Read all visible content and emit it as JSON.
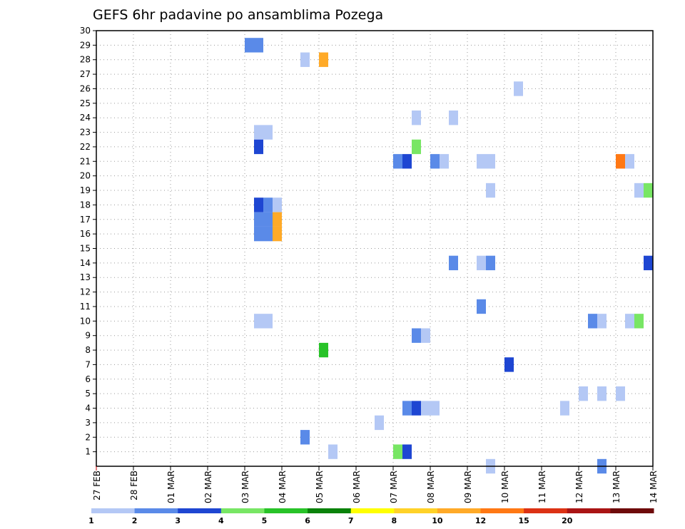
{
  "chart_data": {
    "type": "heatmap",
    "title": "GEFS 6hr padavine po ansamblima Pozega",
    "xlabel": "",
    "ylabel": "",
    "x_tick_labels": [
      "27 FEB",
      "28 FEB",
      "01 MAR",
      "02 MAR",
      "03 MAR",
      "04 MAR",
      "05 MAR",
      "06 MAR",
      "07 MAR",
      "08 MAR",
      "09 MAR",
      "10 MAR",
      "11 MAR",
      "12 MAR",
      "13 MAR",
      "14 MAR"
    ],
    "xlim_days": [
      0,
      15
    ],
    "y_ticks": [
      1,
      2,
      3,
      4,
      5,
      6,
      7,
      8,
      9,
      10,
      11,
      12,
      13,
      14,
      15,
      16,
      17,
      18,
      19,
      20,
      21,
      22,
      23,
      24,
      25,
      26,
      27,
      28,
      29,
      30
    ],
    "ylim": [
      0,
      30
    ],
    "grid": true,
    "legend_position": "bottom",
    "colorbar": {
      "labels": [
        "1",
        "2",
        "3",
        "4",
        "5",
        "6",
        "7",
        "8",
        "10",
        "12",
        "15",
        "20"
      ],
      "colors": [
        "#b4c8f5",
        "#5a8ae8",
        "#1e46d2",
        "#78e664",
        "#28c328",
        "#0a820a",
        "#ffff00",
        "#ffd228",
        "#ffaa28",
        "#ff7814",
        "#dc3214",
        "#aa1414",
        "#6e0a0a"
      ]
    },
    "cells": [
      {
        "day": 4.0,
        "member": 29,
        "color": "#5a8ae8"
      },
      {
        "day": 4.25,
        "member": 29,
        "color": "#5a8ae8"
      },
      {
        "day": 5.5,
        "member": 28,
        "color": "#b4c8f5"
      },
      {
        "day": 6.0,
        "member": 28,
        "color": "#ffaa28"
      },
      {
        "day": 11.25,
        "member": 26,
        "color": "#b4c8f5"
      },
      {
        "day": 8.5,
        "member": 24,
        "color": "#b4c8f5"
      },
      {
        "day": 9.5,
        "member": 24,
        "color": "#b4c8f5"
      },
      {
        "day": 4.25,
        "member": 23,
        "color": "#b4c8f5"
      },
      {
        "day": 4.5,
        "member": 23,
        "color": "#b4c8f5"
      },
      {
        "day": 4.25,
        "member": 22,
        "color": "#1e46d2"
      },
      {
        "day": 8.5,
        "member": 22,
        "color": "#78e664"
      },
      {
        "day": 8.0,
        "member": 21,
        "color": "#5a8ae8"
      },
      {
        "day": 8.25,
        "member": 21,
        "color": "#1e46d2"
      },
      {
        "day": 9.0,
        "member": 21,
        "color": "#5a8ae8"
      },
      {
        "day": 9.25,
        "member": 21,
        "color": "#b4c8f5"
      },
      {
        "day": 10.25,
        "member": 21,
        "color": "#b4c8f5"
      },
      {
        "day": 10.5,
        "member": 21,
        "color": "#b4c8f5"
      },
      {
        "day": 14.0,
        "member": 21,
        "color": "#ff7814"
      },
      {
        "day": 14.25,
        "member": 21,
        "color": "#b4c8f5"
      },
      {
        "day": 10.5,
        "member": 19,
        "color": "#b4c8f5"
      },
      {
        "day": 14.5,
        "member": 19,
        "color": "#b4c8f5"
      },
      {
        "day": 14.75,
        "member": 19,
        "color": "#78e664"
      },
      {
        "day": 4.25,
        "member": 18,
        "color": "#1e46d2"
      },
      {
        "day": 4.5,
        "member": 18,
        "color": "#5a8ae8"
      },
      {
        "day": 4.75,
        "member": 18,
        "color": "#b4c8f5"
      },
      {
        "day": 4.25,
        "member": 17,
        "color": "#5a8ae8"
      },
      {
        "day": 4.5,
        "member": 17,
        "color": "#5a8ae8"
      },
      {
        "day": 4.75,
        "member": 17,
        "color": "#ffaa28"
      },
      {
        "day": 4.25,
        "member": 16,
        "color": "#5a8ae8"
      },
      {
        "day": 4.5,
        "member": 16,
        "color": "#5a8ae8"
      },
      {
        "day": 4.75,
        "member": 16,
        "color": "#ffaa28"
      },
      {
        "day": 9.5,
        "member": 14,
        "color": "#5a8ae8"
      },
      {
        "day": 10.25,
        "member": 14,
        "color": "#b4c8f5"
      },
      {
        "day": 10.5,
        "member": 14,
        "color": "#5a8ae8"
      },
      {
        "day": 14.75,
        "member": 14,
        "color": "#1e46d2"
      },
      {
        "day": 10.25,
        "member": 11,
        "color": "#5a8ae8"
      },
      {
        "day": 4.25,
        "member": 10,
        "color": "#b4c8f5"
      },
      {
        "day": 4.5,
        "member": 10,
        "color": "#b4c8f5"
      },
      {
        "day": 13.25,
        "member": 10,
        "color": "#5a8ae8"
      },
      {
        "day": 13.5,
        "member": 10,
        "color": "#b4c8f5"
      },
      {
        "day": 14.25,
        "member": 10,
        "color": "#b4c8f5"
      },
      {
        "day": 14.5,
        "member": 10,
        "color": "#78e664"
      },
      {
        "day": 8.5,
        "member": 9,
        "color": "#5a8ae8"
      },
      {
        "day": 8.75,
        "member": 9,
        "color": "#b4c8f5"
      },
      {
        "day": 6.0,
        "member": 8,
        "color": "#28c328"
      },
      {
        "day": 11.0,
        "member": 7,
        "color": "#1e46d2"
      },
      {
        "day": 13.0,
        "member": 5,
        "color": "#b4c8f5"
      },
      {
        "day": 13.5,
        "member": 5,
        "color": "#b4c8f5"
      },
      {
        "day": 14.0,
        "member": 5,
        "color": "#b4c8f5"
      },
      {
        "day": 8.25,
        "member": 4,
        "color": "#5a8ae8"
      },
      {
        "day": 8.5,
        "member": 4,
        "color": "#1e46d2"
      },
      {
        "day": 8.75,
        "member": 4,
        "color": "#b4c8f5"
      },
      {
        "day": 9.0,
        "member": 4,
        "color": "#b4c8f5"
      },
      {
        "day": 12.5,
        "member": 4,
        "color": "#b4c8f5"
      },
      {
        "day": 7.5,
        "member": 3,
        "color": "#b4c8f5"
      },
      {
        "day": 5.5,
        "member": 2,
        "color": "#5a8ae8"
      },
      {
        "day": 6.25,
        "member": 1,
        "color": "#b4c8f5"
      },
      {
        "day": 8.0,
        "member": 1,
        "color": "#78e664"
      },
      {
        "day": 8.25,
        "member": 1,
        "color": "#1e46d2"
      },
      {
        "day": 10.5,
        "member": 0,
        "color": "#b4c8f5"
      },
      {
        "day": 13.5,
        "member": 0,
        "color": "#5a8ae8"
      }
    ]
  }
}
